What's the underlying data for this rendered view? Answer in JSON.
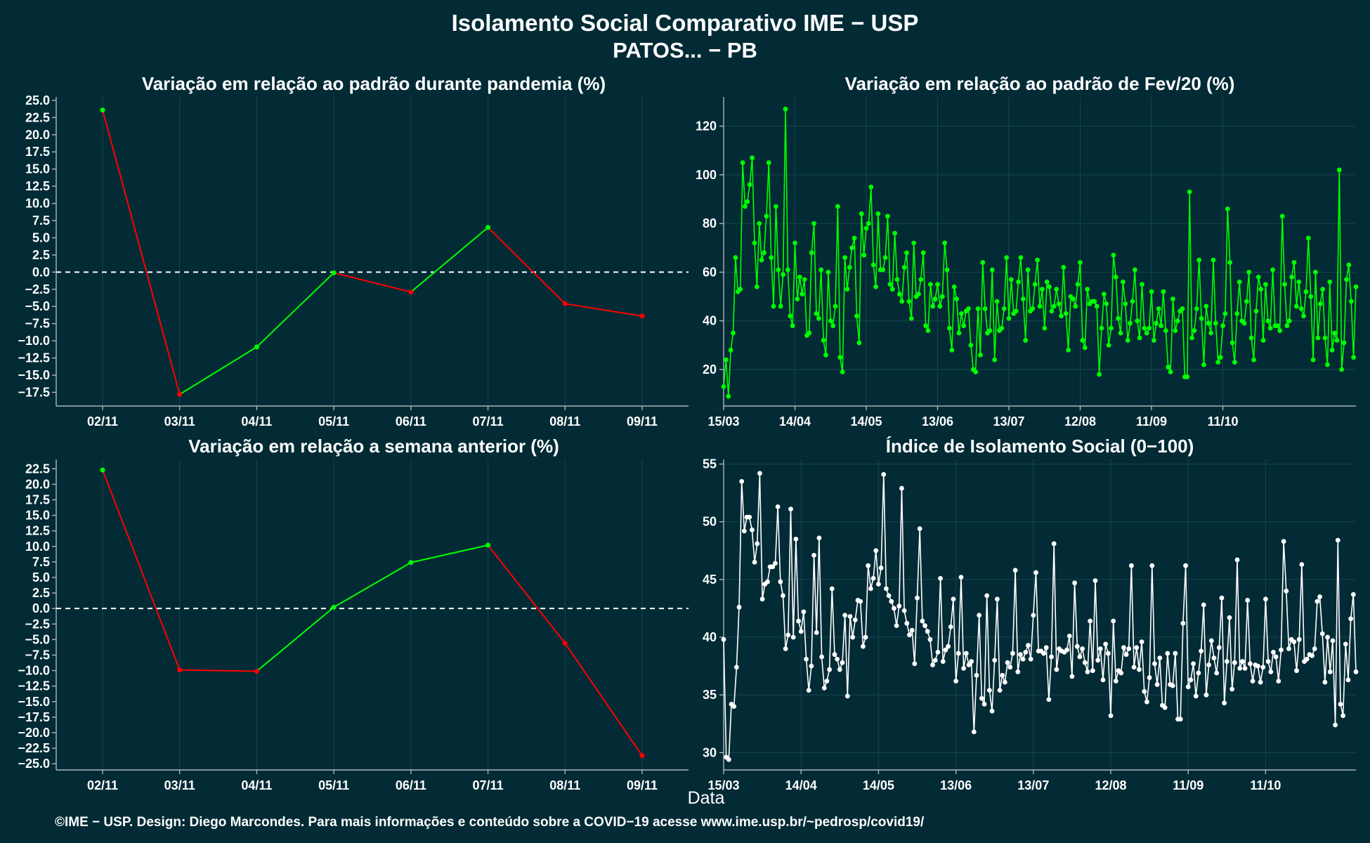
{
  "title": "Isolamento Social Comparativo IME − USP",
  "subtitle": "PATOS... − PB",
  "xlabel": "Data",
  "footer": "©IME − USP. Design: Diego Marcondes. Para mais informações e conteúdo sobre a COVID−19 acesse www.ime.usp.br/~pedrosp/covid19/",
  "colors": {
    "background": "#022b35",
    "positive": "#00ff00",
    "negative": "#ff0000",
    "index": "#ffffff"
  },
  "chart_data": [
    {
      "id": "pandemia",
      "type": "line",
      "title": "Variação em relação ao padrão durante pandemia (%)",
      "categories": [
        "02/11",
        "03/11",
        "04/11",
        "05/11",
        "06/11",
        "07/11",
        "08/11",
        "09/11"
      ],
      "values": [
        23.6,
        -17.8,
        -10.9,
        -0.1,
        -2.9,
        6.5,
        -4.6,
        -6.4
      ],
      "ylim": [
        -19.5,
        25.5
      ],
      "yticks": [
        "25.0",
        "22.5",
        "20.0",
        "17.5",
        "15.0",
        "12.5",
        "10.0",
        "7.5",
        "5.0",
        "2.5",
        "0.0",
        "−2.5",
        "−5.0",
        "−7.5",
        "−10.0",
        "−12.5",
        "−15.0",
        "−17.5"
      ],
      "reference_line": 0,
      "coloring": "green for rising segments, red for falling segments"
    },
    {
      "id": "semana",
      "type": "line",
      "title": "Variação em relação a semana anterior (%)",
      "categories": [
        "02/11",
        "03/11",
        "04/11",
        "05/11",
        "06/11",
        "07/11",
        "08/11",
        "09/11"
      ],
      "values": [
        22.3,
        -9.9,
        -10.1,
        0.2,
        7.4,
        10.2,
        -5.6,
        -23.7
      ],
      "ylim": [
        -26.0,
        24.0
      ],
      "yticks": [
        "22.5",
        "20.0",
        "17.5",
        "15.0",
        "12.5",
        "10.0",
        "7.5",
        "5.0",
        "2.5",
        "0.0",
        "−2.5",
        "−5.0",
        "−7.5",
        "−10.0",
        "−12.5",
        "−15.0",
        "−17.5",
        "−20.0",
        "−22.5",
        "−25.0"
      ],
      "reference_line": 0,
      "coloring": "green for rising segments, red for falling segments"
    },
    {
      "id": "fev20",
      "type": "line",
      "title": "Variação em relação ao padrão de Fev/20 (%)",
      "x_start": "15/03",
      "x_end": "09/11",
      "xticks": [
        "15/03",
        "14/04",
        "14/05",
        "13/06",
        "13/07",
        "12/08",
        "11/09",
        "11/10"
      ],
      "ylim": [
        5,
        132
      ],
      "yticks": [
        20,
        40,
        60,
        80,
        100,
        120
      ],
      "values": [
        13,
        24,
        9,
        28,
        35,
        66,
        52,
        53,
        105,
        87,
        89,
        96,
        107,
        72,
        54,
        80,
        65,
        68,
        83,
        105,
        66,
        46,
        87,
        61,
        46,
        59,
        127,
        61,
        42,
        38,
        72,
        49,
        58,
        51,
        57,
        34,
        35,
        68,
        80,
        43,
        41,
        61,
        32,
        26,
        60,
        40,
        38,
        46,
        87,
        25,
        19,
        66,
        53,
        62,
        70,
        74,
        42,
        31,
        84,
        67,
        78,
        80,
        95,
        63,
        54,
        84,
        61,
        61,
        66,
        83,
        55,
        53,
        76,
        57,
        51,
        48,
        62,
        68,
        48,
        41,
        72,
        50,
        51,
        57,
        68,
        38,
        36,
        55,
        46,
        49,
        55,
        46,
        50,
        72,
        61,
        37,
        28,
        54,
        49,
        35,
        43,
        38,
        44,
        45,
        30,
        20,
        19,
        45,
        26,
        64,
        45,
        35,
        36,
        61,
        24,
        48,
        36,
        37,
        45,
        66,
        41,
        57,
        43,
        44,
        56,
        66,
        49,
        32,
        61,
        44,
        45,
        55,
        65,
        46,
        53,
        37,
        56,
        54,
        44,
        46,
        53,
        47,
        42,
        62,
        43,
        28,
        50,
        49,
        46,
        55,
        64,
        32,
        29,
        53,
        47,
        48,
        48,
        46,
        18,
        37,
        51,
        47,
        30,
        37,
        67,
        58,
        41,
        35,
        56,
        47,
        32,
        39,
        48,
        61,
        40,
        33,
        55,
        37,
        35,
        37,
        52,
        32,
        39,
        45,
        38,
        52,
        36,
        21,
        19,
        49,
        36,
        40,
        44,
        45,
        17,
        17,
        93,
        33,
        36,
        45,
        65,
        41,
        22,
        46,
        39,
        35,
        65,
        39,
        23,
        25,
        38,
        43,
        86,
        64,
        31,
        23,
        43,
        56,
        40,
        39,
        48,
        60,
        33,
        24,
        44,
        58,
        53,
        32,
        55,
        40,
        37,
        61,
        38,
        38,
        36,
        83,
        55,
        38,
        40,
        58,
        64,
        46,
        56,
        45,
        42,
        52,
        74,
        50,
        24,
        60,
        33,
        47,
        53,
        33,
        22,
        56,
        28,
        35,
        32,
        102,
        20,
        31,
        57,
        63,
        48,
        25,
        54
      ]
    },
    {
      "id": "indice",
      "type": "line",
      "title": "Índice de Isolamento Social (0−100)",
      "x_start": "15/03",
      "x_end": "09/11",
      "xticks": [
        "15/03",
        "14/04",
        "14/05",
        "13/06",
        "13/07",
        "12/08",
        "11/09",
        "11/10"
      ],
      "ylim": [
        28.5,
        55.4
      ],
      "yticks": [
        30,
        35,
        40,
        45,
        50,
        55
      ],
      "values": [
        39.8,
        29.6,
        29.4,
        34.2,
        34.0,
        37.4,
        42.6,
        53.5,
        49.2,
        50.4,
        50.4,
        49.3,
        46.5,
        48.1,
        54.2,
        43.3,
        44.6,
        44.8,
        46.1,
        46.1,
        46.4,
        51.3,
        44.8,
        43.6,
        39.0,
        40.2,
        51.1,
        40.0,
        48.5,
        41.4,
        40.5,
        42.2,
        38.1,
        35.4,
        37.5,
        47.1,
        40.4,
        48.6,
        38.3,
        35.6,
        36.2,
        37.2,
        44.2,
        38.5,
        38.1,
        37.2,
        37.8,
        41.9,
        34.9,
        41.8,
        40.0,
        41.5,
        43.2,
        43.1,
        39.2,
        40.0,
        46.2,
        44.2,
        45.1,
        47.5,
        44.6,
        46.0,
        54.1,
        44.2,
        43.6,
        43.1,
        42.5,
        41.0,
        42.7,
        52.9,
        42.3,
        41.2,
        40.2,
        40.6,
        37.7,
        43.4,
        49.4,
        41.4,
        41.0,
        40.5,
        39.8,
        37.6,
        38.0,
        38.7,
        45.1,
        37.9,
        38.9,
        39.2,
        40.9,
        43.3,
        36.2,
        38.6,
        45.2,
        37.3,
        38.6,
        37.6,
        37.9,
        31.8,
        36.7,
        41.9,
        34.7,
        34.2,
        43.6,
        35.4,
        33.6,
        38.0,
        43.3,
        35.4,
        36.7,
        36.1,
        37.8,
        37.4,
        38.6,
        45.8,
        37.0,
        38.5,
        38.1,
        38.7,
        39.3,
        38.1,
        41.9,
        45.6,
        38.8,
        38.8,
        38.6,
        39.1,
        34.6,
        38.3,
        48.1,
        37.2,
        39.0,
        38.8,
        38.7,
        38.9,
        40.1,
        36.6,
        44.7,
        39.2,
        38.3,
        39.0,
        37.8,
        37.0,
        41.4,
        37.1,
        44.9,
        38.0,
        39.0,
        36.3,
        39.4,
        38.6,
        33.2,
        41.4,
        36.2,
        37.1,
        36.9,
        39.1,
        38.5,
        39.0,
        46.2,
        37.4,
        39.1,
        37.2,
        39.6,
        35.3,
        34.4,
        36.5,
        46.2,
        37.7,
        35.9,
        38.2,
        34.1,
        33.9,
        38.6,
        35.9,
        35.8,
        38.6,
        32.9,
        32.9,
        41.2,
        46.2,
        35.7,
        36.3,
        37.7,
        34.9,
        36.9,
        38.8,
        42.8,
        35.0,
        37.6,
        39.7,
        38.2,
        36.9,
        39.1,
        43.4,
        34.3,
        37.9,
        41.7,
        35.5,
        37.8,
        46.7,
        37.3,
        37.9,
        37.3,
        43.2,
        37.7,
        36.2,
        37.6,
        37.5,
        36.1,
        37.4,
        43.3,
        37.9,
        37.0,
        38.7,
        38.3,
        36.2,
        38.9,
        48.3,
        44.0,
        39.0,
        39.8,
        39.6,
        37.1,
        39.8,
        46.3,
        37.9,
        38.1,
        38.5,
        38.4,
        39.0,
        43.1,
        43.5,
        40.3,
        36.1,
        40.0,
        37.0,
        39.7,
        32.4,
        48.4,
        34.2,
        33.2,
        39.4,
        36.3,
        41.6,
        43.7,
        37.0
      ]
    }
  ]
}
